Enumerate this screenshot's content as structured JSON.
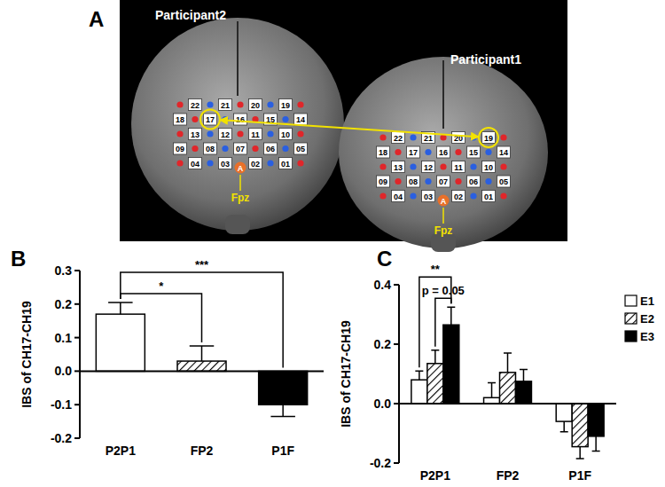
{
  "figure": {
    "panel_labels": [
      "A",
      "B",
      "C"
    ]
  },
  "diagram": {
    "participants": [
      {
        "label": "Participant2",
        "highlight": "17"
      },
      {
        "label": "Participant1",
        "highlight": "19"
      }
    ],
    "channel_rows": [
      [
        "22",
        "21",
        "20",
        "19"
      ],
      [
        "18",
        "17",
        "16",
        "15",
        "14"
      ],
      [
        "13",
        "12",
        "11",
        "10"
      ],
      [
        "09",
        "08",
        "07",
        "06",
        "05"
      ],
      [
        "04",
        "03",
        "02",
        "01"
      ]
    ],
    "reference_optode": "A",
    "reference_label": "Fpz"
  },
  "chart_data": [
    {
      "type": "bar",
      "y_label": "IBS of CH17-CH19",
      "categories": [
        "P2P1",
        "FP2",
        "P1F"
      ],
      "values": [
        0.17,
        0.03,
        -0.1
      ],
      "errors": [
        0.035,
        0.045,
        0.035
      ],
      "colors": [
        "#ffffff",
        "hatch",
        "#000000"
      ],
      "ylim": [
        -0.2,
        0.3
      ],
      "yticks": [
        -0.2,
        -0.1,
        {
          "value": 0,
          "label": "0.0"
        },
        0.1,
        0.2,
        0.3
      ],
      "annotations": [
        {
          "between": [
            "P2P1",
            "FP2"
          ],
          "text": "*"
        },
        {
          "between": [
            "P2P1",
            "P1F"
          ],
          "text": "***"
        }
      ]
    },
    {
      "type": "bar",
      "y_label": "IBS of CH17-CH19",
      "categories": [
        "P2P1",
        "FP2",
        "P1F"
      ],
      "series": [
        {
          "name": "E1",
          "color": "#ffffff",
          "values": [
            0.08,
            0.02,
            -0.06
          ],
          "errors": [
            0.03,
            0.05,
            0.035
          ]
        },
        {
          "name": "E2",
          "color": "hatch",
          "values": [
            0.135,
            0.105,
            -0.145
          ],
          "errors": [
            0.045,
            0.065,
            0.04
          ]
        },
        {
          "name": "E3",
          "color": "#000000",
          "values": [
            0.265,
            0.075,
            -0.11
          ],
          "errors": [
            0.06,
            0.04,
            0.05
          ]
        }
      ],
      "ylim": [
        -0.2,
        0.4
      ],
      "yticks": [
        -0.2,
        {
          "value": 0,
          "label": "0.0"
        },
        0.2,
        0.4
      ],
      "legend": "right",
      "annotations": [
        {
          "category": "P2P1",
          "between": [
            "E1",
            "E3"
          ],
          "text": "**"
        },
        {
          "category": "P2P1",
          "between": [
            "E2",
            "E3"
          ],
          "text": "p = 0.05"
        }
      ]
    }
  ]
}
